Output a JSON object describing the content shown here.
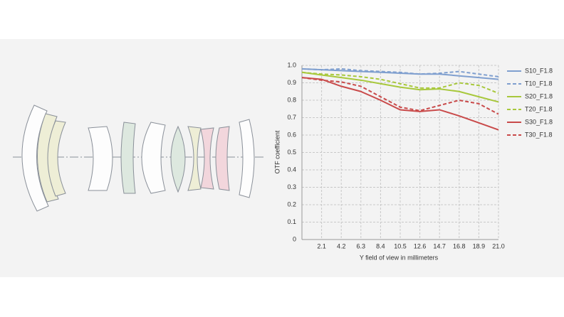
{
  "chart_data": {
    "type": "line",
    "xlabel": "Y field of view in millimeters",
    "ylabel": "OTF coefficient",
    "x": [
      0,
      2.1,
      4.2,
      6.3,
      8.4,
      10.5,
      12.6,
      14.7,
      16.8,
      18.9,
      21
    ],
    "series": [
      {
        "name": "S10_F1.8",
        "color": "#7f9fcf",
        "line_style": "solid",
        "values": [
          0.98,
          0.975,
          0.97,
          0.965,
          0.96,
          0.955,
          0.95,
          0.95,
          0.94,
          0.93,
          0.92
        ]
      },
      {
        "name": "T10_F1.8",
        "color": "#7f9fcf",
        "line_style": "dashed",
        "values": [
          0.98,
          0.975,
          0.98,
          0.97,
          0.965,
          0.96,
          0.95,
          0.955,
          0.965,
          0.95,
          0.935
        ]
      },
      {
        "name": "S20_F1.8",
        "color": "#a8c83c",
        "line_style": "solid",
        "values": [
          0.96,
          0.945,
          0.93,
          0.915,
          0.895,
          0.875,
          0.86,
          0.865,
          0.85,
          0.82,
          0.79
        ]
      },
      {
        "name": "T20_F1.8",
        "color": "#a8c83c",
        "line_style": "dashed",
        "values": [
          0.96,
          0.95,
          0.945,
          0.935,
          0.92,
          0.895,
          0.87,
          0.87,
          0.9,
          0.885,
          0.84
        ]
      },
      {
        "name": "S30_F1.8",
        "color": "#c94a4a",
        "line_style": "solid",
        "values": [
          0.93,
          0.92,
          0.88,
          0.85,
          0.8,
          0.745,
          0.735,
          0.745,
          0.71,
          0.67,
          0.63
        ]
      },
      {
        "name": "T30_F1.8",
        "color": "#c94a4a",
        "line_style": "dashed",
        "values": [
          0.93,
          0.915,
          0.905,
          0.88,
          0.82,
          0.76,
          0.74,
          0.77,
          0.8,
          0.78,
          0.72
        ]
      }
    ],
    "xlim": [
      0,
      21
    ],
    "xticks": [
      2.1,
      4.2,
      6.3,
      8.4,
      10.5,
      12.6,
      14.7,
      16.8,
      18.9,
      {
        "value": 21,
        "label": "21.0"
      }
    ],
    "ylim": [
      0,
      1
    ],
    "yticks": [
      0,
      0.1,
      0.2,
      0.3,
      0.4,
      0.5,
      0.6,
      0.7,
      0.8,
      0.9,
      {
        "value": 1,
        "label": "1.0"
      }
    ],
    "grid": true,
    "legend": "right"
  }
}
